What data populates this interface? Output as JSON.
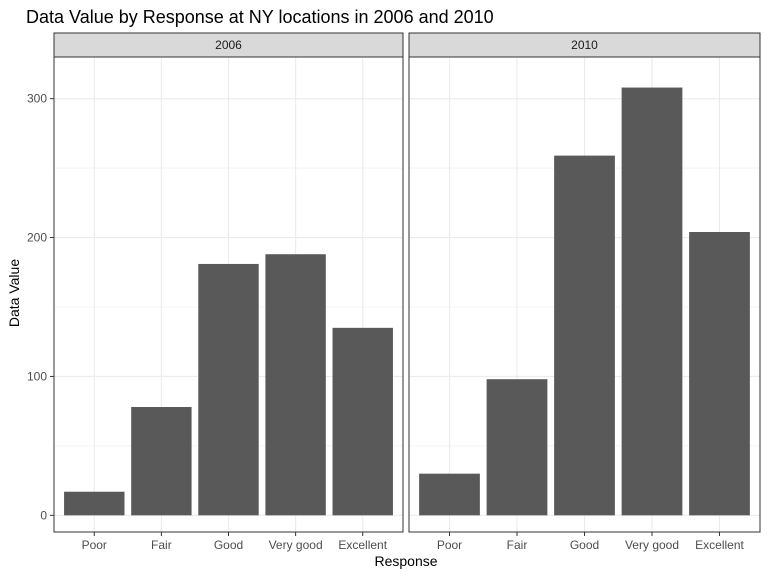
{
  "chart_data": {
    "type": "bar",
    "title": "Data Value by Response at NY locations in 2006 and 2010",
    "xlabel": "Response",
    "ylabel": "Data Value",
    "categories": [
      "Poor",
      "Fair",
      "Good",
      "Very good",
      "Excellent"
    ],
    "ylim": [
      -12,
      330
    ],
    "yticks": [
      0,
      100,
      200,
      300
    ],
    "grid": true,
    "facets": [
      {
        "label": "2006",
        "values": [
          17,
          78,
          181,
          188,
          135
        ]
      },
      {
        "label": "2010",
        "values": [
          30,
          98,
          259,
          308,
          204
        ]
      }
    ],
    "colors": {
      "bar": "#595959",
      "grid": "#ebebeb",
      "strip_fill": "#d9d9d9",
      "strip_border": "#333333",
      "panel_border": "#333333"
    }
  }
}
